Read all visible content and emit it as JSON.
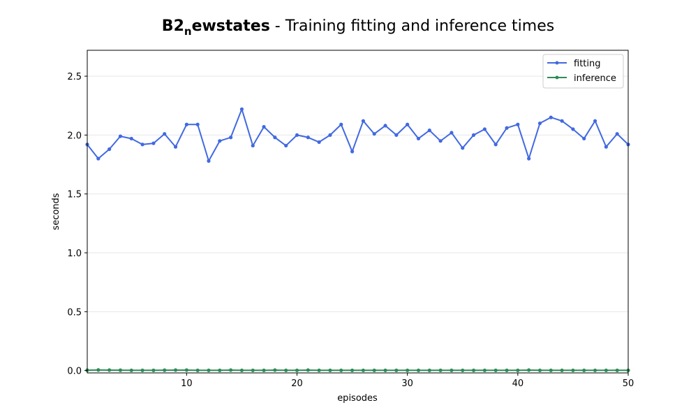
{
  "chart_data": {
    "type": "line",
    "title": {
      "main": "B2",
      "subscript": "n",
      "bold_rest": "ewstates",
      "rest": " - Training fitting and inference times"
    },
    "xlabel": "episodes",
    "ylabel": "seconds",
    "xlim": [
      1,
      50
    ],
    "ylim": [
      -0.02,
      2.72
    ],
    "xticks": [
      10,
      20,
      30,
      40,
      50
    ],
    "yticks": [
      0.0,
      0.5,
      1.0,
      1.5,
      2.0,
      2.5
    ],
    "ytick_labels": [
      "0.0",
      "0.5",
      "1.0",
      "1.5",
      "2.0",
      "2.5"
    ],
    "grid": "horizontal",
    "legend_position": "top-right",
    "x": [
      1,
      2,
      3,
      4,
      5,
      6,
      7,
      8,
      9,
      10,
      11,
      12,
      13,
      14,
      15,
      16,
      17,
      18,
      19,
      20,
      21,
      22,
      23,
      24,
      25,
      26,
      27,
      28,
      29,
      30,
      31,
      32,
      33,
      34,
      35,
      36,
      37,
      38,
      39,
      40,
      41,
      42,
      43,
      44,
      45,
      46,
      47,
      48,
      49,
      50
    ],
    "series": [
      {
        "name": "fitting",
        "color": "#4169e1",
        "values": [
          1.92,
          1.8,
          1.88,
          1.99,
          1.97,
          1.92,
          1.93,
          2.01,
          1.9,
          2.09,
          2.09,
          1.78,
          1.95,
          1.98,
          2.22,
          1.91,
          2.07,
          1.98,
          1.91,
          2.0,
          1.98,
          1.94,
          2.0,
          2.09,
          1.86,
          2.12,
          2.01,
          2.08,
          2.0,
          2.09,
          1.97,
          2.04,
          1.95,
          2.02,
          1.89,
          2.0,
          2.05,
          1.92,
          2.06,
          2.09,
          1.8,
          2.1,
          2.15,
          2.12,
          2.05,
          1.97,
          2.12,
          1.9,
          2.01,
          1.92
        ]
      },
      {
        "name": "inference",
        "color": "#2e8b57",
        "values": [
          0.003,
          0.005,
          0.004,
          0.003,
          0.002,
          0.002,
          0.002,
          0.003,
          0.004,
          0.004,
          0.002,
          0.002,
          0.002,
          0.004,
          0.002,
          0.002,
          0.002,
          0.004,
          0.002,
          0.002,
          0.004,
          0.002,
          0.002,
          0.002,
          0.002,
          0.002,
          0.002,
          0.002,
          0.002,
          0.002,
          0.002,
          0.002,
          0.002,
          0.002,
          0.002,
          0.002,
          0.002,
          0.002,
          0.002,
          0.002,
          0.004,
          0.002,
          0.002,
          0.002,
          0.002,
          0.002,
          0.002,
          0.002,
          0.002,
          0.002
        ]
      }
    ]
  }
}
